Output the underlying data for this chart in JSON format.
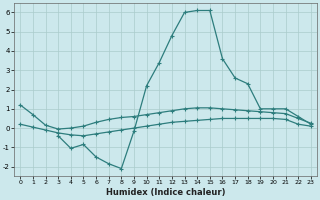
{
  "xlabel": "Humidex (Indice chaleur)",
  "background_color": "#cce8ec",
  "grid_color": "#aacccc",
  "line_color": "#2d7d7d",
  "ylim": [
    -2.5,
    6.5
  ],
  "xlim": [
    -0.5,
    23.5
  ],
  "yticks": [
    -2,
    -1,
    0,
    1,
    2,
    3,
    4,
    5,
    6
  ],
  "xticks": [
    0,
    1,
    2,
    3,
    4,
    5,
    6,
    7,
    8,
    9,
    10,
    11,
    12,
    13,
    14,
    15,
    16,
    17,
    18,
    19,
    20,
    21,
    22,
    23
  ],
  "curve1_x": [
    0,
    1,
    2,
    3,
    4,
    5,
    6,
    7,
    8,
    9,
    10,
    11,
    12,
    13,
    14,
    15,
    16,
    17,
    18,
    19,
    20,
    21,
    22,
    23
  ],
  "curve1_y": [
    1.2,
    0.7,
    0.15,
    -0.05,
    0.0,
    0.1,
    0.3,
    0.45,
    0.55,
    0.6,
    0.7,
    0.8,
    0.9,
    1.0,
    1.05,
    1.05,
    1.0,
    0.95,
    0.9,
    0.85,
    0.8,
    0.75,
    0.5,
    0.25
  ],
  "curve2_x": [
    3,
    4,
    5,
    6,
    7,
    8,
    9,
    10,
    11,
    12,
    13,
    14,
    15,
    16,
    17,
    18,
    19,
    20,
    21,
    22,
    23
  ],
  "curve2_y": [
    -0.4,
    -1.05,
    -0.85,
    -1.5,
    -1.85,
    -2.1,
    -0.15,
    2.2,
    3.4,
    4.8,
    6.0,
    6.1,
    6.1,
    3.6,
    2.6,
    2.3,
    1.0,
    1.0,
    1.0,
    0.6,
    0.2
  ],
  "curve3_x": [
    0,
    1,
    2,
    3,
    4,
    5,
    6,
    7,
    8,
    9,
    10,
    11,
    12,
    13,
    14,
    15,
    16,
    17,
    18,
    19,
    20,
    21,
    22,
    23
  ],
  "curve3_y": [
    0.2,
    0.05,
    -0.1,
    -0.25,
    -0.35,
    -0.4,
    -0.3,
    -0.2,
    -0.1,
    0.0,
    0.1,
    0.2,
    0.3,
    0.35,
    0.4,
    0.45,
    0.5,
    0.5,
    0.5,
    0.5,
    0.5,
    0.45,
    0.2,
    0.1
  ]
}
